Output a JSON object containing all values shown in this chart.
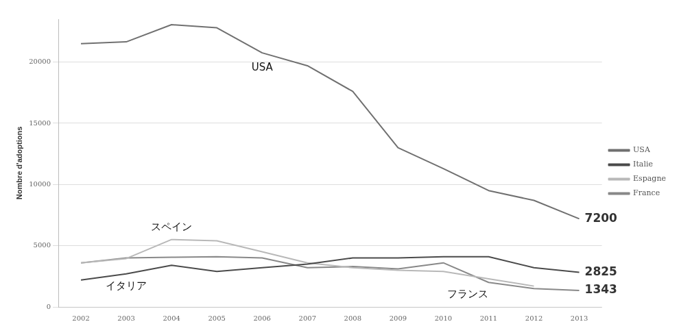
{
  "chart_data": {
    "type": "line",
    "ylabel": "Nombre d'adoptions",
    "categories": [
      "2002",
      "2003",
      "2004",
      "2005",
      "2006",
      "2007",
      "2008",
      "2009",
      "2010",
      "2011",
      "2012",
      "2013"
    ],
    "series": [
      {
        "name": "USA",
        "color": "#707070",
        "values": [
          21500,
          21650,
          23050,
          22800,
          20750,
          19700,
          17600,
          13000,
          11300,
          9500,
          8700,
          7200
        ],
        "value_labels": [
          null,
          null,
          null,
          null,
          null,
          null,
          null,
          null,
          null,
          null,
          null,
          "7200"
        ]
      },
      {
        "name": "Italie",
        "color": "#4a4a4a",
        "values": [
          2200,
          2700,
          3400,
          2900,
          3200,
          3500,
          4000,
          4000,
          4100,
          4100,
          3200,
          2825
        ],
        "value_labels": [
          null,
          null,
          null,
          null,
          null,
          null,
          null,
          null,
          null,
          null,
          null,
          "2825"
        ]
      },
      {
        "name": "Espagne",
        "color": "#b8b8b8",
        "values": [
          3600,
          3950,
          5500,
          5400,
          4500,
          3600,
          3200,
          3000,
          2900,
          2300,
          1700,
          null
        ]
      },
      {
        "name": "France",
        "color": "#888888",
        "values": [
          3600,
          4000,
          4050,
          4100,
          4000,
          3200,
          3300,
          3100,
          3600,
          2000,
          1500,
          1343
        ],
        "value_labels": [
          null,
          null,
          null,
          null,
          null,
          null,
          null,
          null,
          null,
          null,
          null,
          "1343"
        ]
      }
    ],
    "annotations": [
      {
        "text": "USA",
        "x": "2006",
        "y": 20750
      },
      {
        "text": "スペイン",
        "x": "2004",
        "y": 5500
      },
      {
        "text": "イタリア",
        "x": "2003",
        "y": 2700
      },
      {
        "text": "フランス",
        "x": "2011",
        "y": 2000
      }
    ],
    "ylim": [
      0,
      23500
    ],
    "yticks": [
      0,
      5000,
      10000,
      15000,
      20000
    ],
    "grid": "y",
    "legend": "right",
    "marker": "none",
    "line_style": "solid"
  }
}
